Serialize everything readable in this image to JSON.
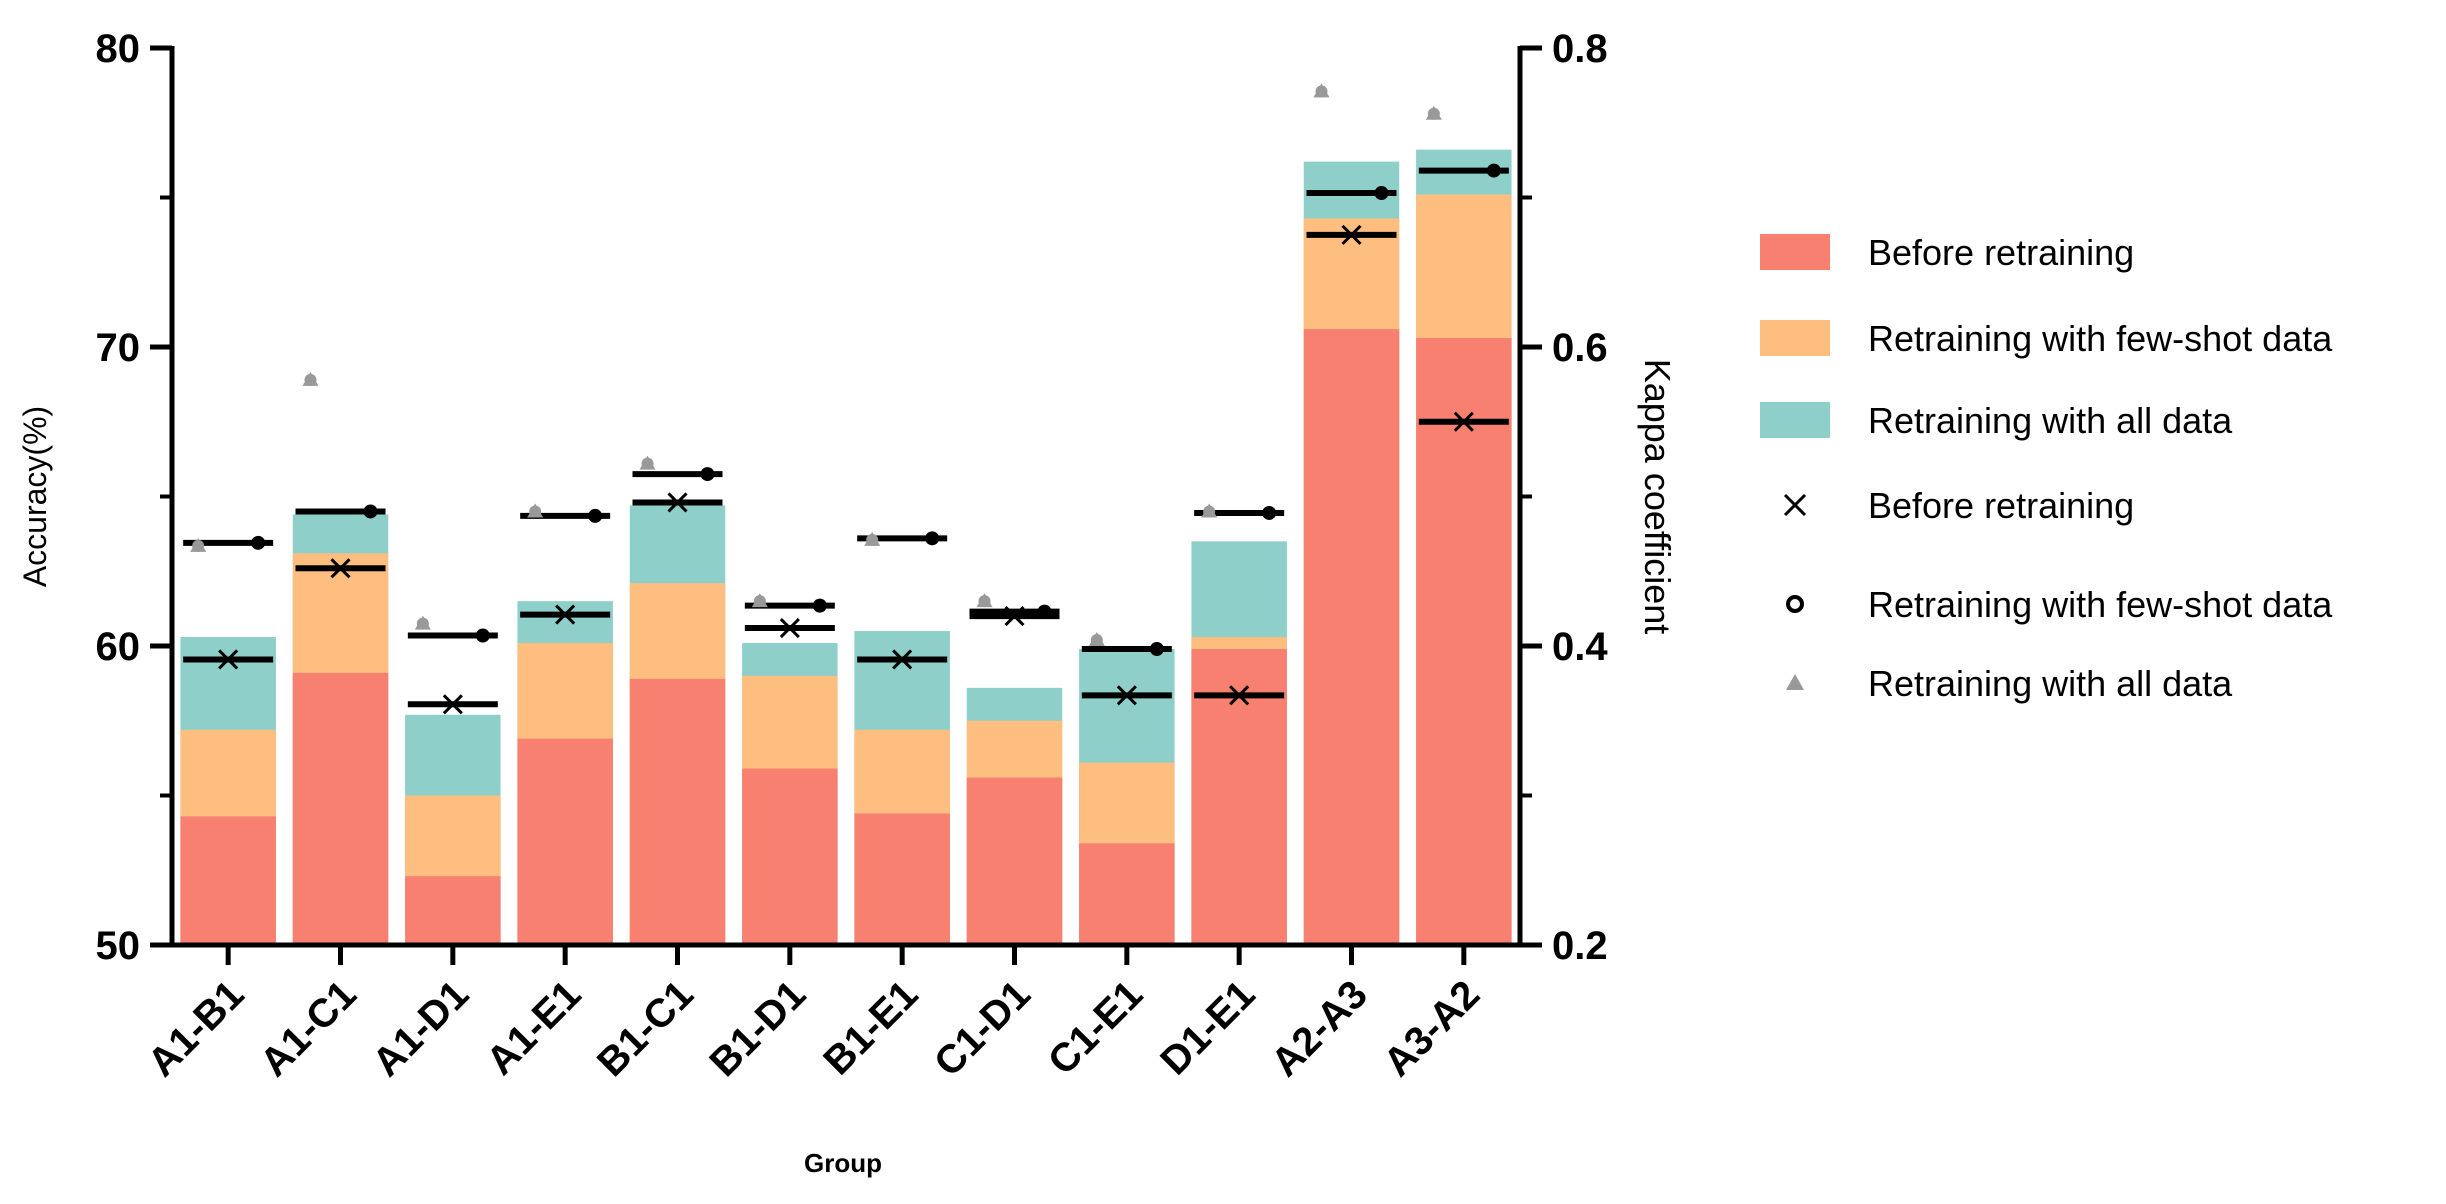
{
  "chart_data": {
    "type": "bar",
    "stacked": true,
    "xlabel": "Group",
    "ylabel": "Accuracy(%)",
    "y2label": "Kappa coefficient",
    "ylim": [
      50,
      80
    ],
    "y2lim": [
      0.2,
      0.8
    ],
    "yticks": [
      "50",
      "60",
      "70",
      "80"
    ],
    "y2ticks": [
      "0.2",
      "0.4",
      "0.6",
      "0.8"
    ],
    "categories": [
      "A1-B1",
      "A1-C1",
      "A1-D1",
      "A1-E1",
      "B1-C1",
      "B1-D1",
      "B1-E1",
      "C1-D1",
      "C1-E1",
      "D1-E1",
      "A2-A3",
      "A3-A2"
    ],
    "series": [
      {
        "name": "Before retraining",
        "color": "#F88070",
        "values": [
          54.3,
          59.1,
          52.3,
          56.9,
          58.9,
          55.9,
          54.4,
          55.6,
          53.4,
          59.9,
          70.6,
          70.3
        ]
      },
      {
        "name": "Retraining with few-shot data",
        "color": "#FDBE7F",
        "values": [
          57.2,
          63.1,
          55.0,
          60.1,
          62.1,
          59.0,
          57.2,
          57.5,
          56.1,
          60.3,
          74.3,
          75.1
        ]
      },
      {
        "name": "Retraining with all data",
        "color": "#8ED0C9",
        "values": [
          60.3,
          64.4,
          57.7,
          61.5,
          64.7,
          60.1,
          60.5,
          58.6,
          59.9,
          63.5,
          76.2,
          76.6
        ]
      }
    ],
    "kappa_series": [
      {
        "name": "Before retraining",
        "marker": "cross",
        "color": "#000000",
        "values": [
          0.391,
          0.452,
          0.361,
          0.421,
          0.496,
          0.412,
          0.391,
          0.42,
          0.367,
          0.367,
          0.675,
          0.55
        ]
      },
      {
        "name": "Retraining with few-shot data",
        "marker": "circle",
        "color": "#000000",
        "values": [
          0.469,
          0.49,
          0.407,
          0.487,
          0.515,
          0.427,
          0.472,
          0.423,
          0.398,
          0.489,
          0.703,
          0.718
        ]
      },
      {
        "name": "Retraining with all data",
        "marker": "triangle",
        "color": "#999999",
        "values": [
          0.467,
          0.578,
          0.415,
          0.49,
          0.522,
          0.43,
          0.471,
          0.43,
          0.404,
          0.49,
          0.771,
          0.756
        ]
      }
    ],
    "legend_position": "right",
    "legend_labels": [
      "Before retraining",
      "Retraining with few-shot data",
      "Retraining with all data",
      "Before retraining",
      "Retraining with few-shot data",
      "Retraining with all data"
    ]
  }
}
